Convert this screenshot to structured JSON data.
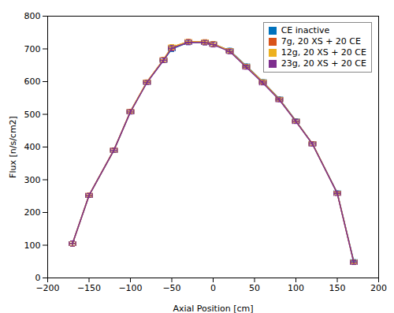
{
  "chart_data": {
    "type": "line",
    "title": "",
    "xlabel": "Axial Position [cm]",
    "ylabel": "Flux [n/s/cm2]",
    "xlim": [
      -200,
      200
    ],
    "ylim": [
      0,
      800
    ],
    "xticks": [
      -200,
      -150,
      -100,
      -50,
      0,
      50,
      100,
      150,
      200
    ],
    "yticks": [
      0,
      100,
      200,
      300,
      400,
      500,
      600,
      700,
      800
    ],
    "x": [
      -170,
      -150,
      -120,
      -100,
      -80,
      -60,
      -50,
      -30,
      -10,
      0,
      20,
      40,
      60,
      80,
      100,
      120,
      150,
      170
    ],
    "series": [
      {
        "name": "CE inactive",
        "color": "#0072BD",
        "values": [
          105,
          252,
          390,
          508,
          598,
          665,
          700,
          720,
          720,
          715,
          695,
          648,
          600,
          547,
          480,
          410,
          260,
          50
        ],
        "xerr": 4,
        "yerr": [
          8,
          6,
          6,
          6,
          6,
          7,
          8,
          7,
          7,
          7,
          7,
          6,
          6,
          6,
          6,
          6,
          6,
          6
        ]
      },
      {
        "name": "7g, 20 XS + 20 CE",
        "color": "#D95319",
        "values": [
          105,
          253,
          391,
          509,
          599,
          667,
          705,
          722,
          721,
          715,
          694,
          646,
          599,
          546,
          479,
          410,
          259,
          48
        ],
        "xerr": 4,
        "yerr": [
          8,
          6,
          6,
          6,
          6,
          7,
          8,
          7,
          7,
          7,
          7,
          6,
          6,
          6,
          6,
          6,
          6,
          6
        ]
      },
      {
        "name": "12g, 20 XS + 20 CE",
        "color": "#EDB120",
        "values": [
          105,
          252,
          390,
          508,
          599,
          667,
          706,
          722,
          721,
          715,
          694,
          646,
          599,
          546,
          479,
          410,
          259,
          48
        ],
        "xerr": 4,
        "yerr": [
          7,
          5,
          5,
          5,
          5,
          6,
          7,
          6,
          6,
          6,
          6,
          5,
          5,
          5,
          5,
          5,
          5,
          5
        ]
      },
      {
        "name": "23g, 20 XS + 20 CE",
        "color": "#7E2F8E",
        "values": [
          105,
          252,
          390,
          507,
          597,
          665,
          702,
          720,
          719,
          713,
          692,
          644,
          596,
          544,
          478,
          409,
          258,
          47
        ],
        "xerr": 4,
        "yerr": [
          8,
          6,
          6,
          6,
          6,
          7,
          8,
          7,
          7,
          7,
          7,
          6,
          6,
          6,
          6,
          6,
          6,
          6
        ]
      }
    ],
    "legend": "upper right",
    "grid": false
  }
}
